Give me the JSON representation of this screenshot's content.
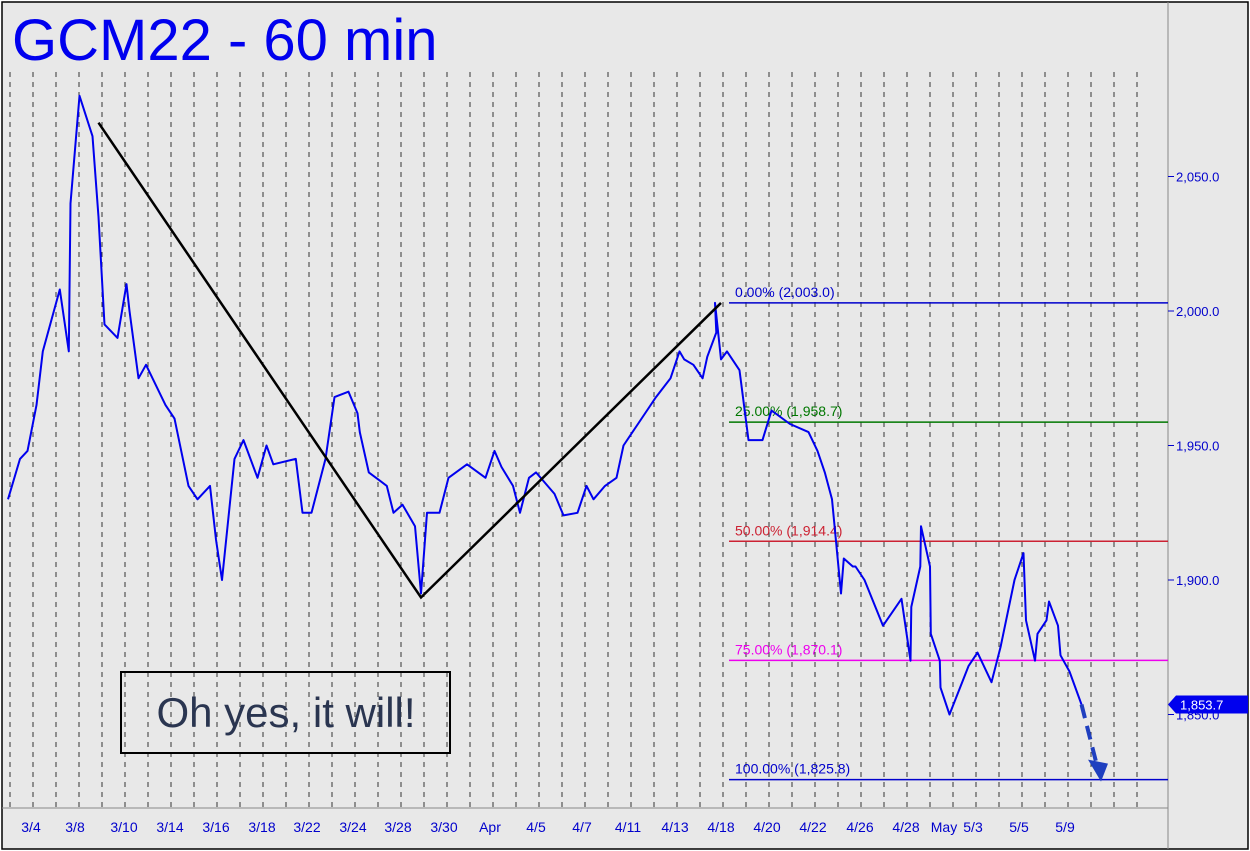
{
  "chart_data": {
    "type": "line",
    "title": "GCM22 - 60 min",
    "annotation_box": "Oh yes, it will!",
    "ylim": [
      1810,
      2090
    ],
    "y_ticks": [
      {
        "value": 2050,
        "label": "2,050.0"
      },
      {
        "value": 2000,
        "label": "2,000.0"
      },
      {
        "value": 1950,
        "label": "1,950.0"
      },
      {
        "value": 1900,
        "label": "1,900.0"
      },
      {
        "value": 1850,
        "label": "1,850.0"
      }
    ],
    "x_tick_labels": [
      "3/4",
      "3/8",
      "3/10",
      "3/14",
      "3/16",
      "3/18",
      "3/22",
      "3/24",
      "3/28",
      "3/30",
      "Apr",
      "4/5",
      "4/7",
      "4/11",
      "4/13",
      "4/18",
      "4/20",
      "4/22",
      "4/26",
      "4/28",
      "May",
      "5/3",
      "5/5",
      "5/9"
    ],
    "last_price": {
      "value": 1853.7,
      "label": "1,853.7"
    },
    "fib_levels": [
      {
        "pct": "0.00%",
        "label": "0.00% (2,003.0)",
        "value": 2003.0,
        "color": "#0000cc"
      },
      {
        "pct": "25.00%",
        "label": "25.00% (1,958.7)",
        "value": 1958.7,
        "color": "#007700"
      },
      {
        "pct": "50.00%",
        "label": "50.00% (1,914.4)",
        "value": 1914.4,
        "color": "#cc2233"
      },
      {
        "pct": "75.00%",
        "label": "75.00% (1,870.1)",
        "value": 1870.1,
        "color": "#ee00ee"
      },
      {
        "pct": "100.00%",
        "label": "100.00% (1,825.8)",
        "value": 1825.8,
        "color": "#0000cc"
      }
    ],
    "abc_pattern": [
      {
        "x": "3/9",
        "y": 2070
      },
      {
        "x": "3/29",
        "y": 1893.5
      },
      {
        "x": "4/18",
        "y": 2003.0
      }
    ],
    "series": [
      {
        "points": [
          [
            "3/2",
            1930
          ],
          [
            "3/3",
            1945
          ],
          [
            "3/4",
            1948
          ],
          [
            "3/4",
            1965
          ],
          [
            "3/5",
            1985
          ],
          [
            "3/7",
            2008
          ],
          [
            "3/7",
            1985
          ],
          [
            "3/8",
            2040
          ],
          [
            "3/8",
            2080
          ],
          [
            "3/9",
            2065
          ],
          [
            "3/9",
            2035
          ],
          [
            "3/9",
            1995
          ],
          [
            "3/10",
            1990
          ],
          [
            "3/10",
            2010
          ],
          [
            "3/11",
            2000
          ],
          [
            "3/11",
            1975
          ],
          [
            "3/12",
            1980
          ],
          [
            "3/14",
            1965
          ],
          [
            "3/14",
            1960
          ],
          [
            "3/15",
            1935
          ],
          [
            "3/15",
            1930
          ],
          [
            "3/16",
            1935
          ],
          [
            "3/16",
            1915
          ],
          [
            "3/16",
            1900
          ],
          [
            "3/17",
            1945
          ],
          [
            "3/17",
            1952
          ],
          [
            "3/18",
            1938
          ],
          [
            "3/18",
            1950
          ],
          [
            "3/19",
            1943
          ],
          [
            "3/21",
            1945
          ],
          [
            "3/22",
            1925
          ],
          [
            "3/22",
            1925
          ],
          [
            "3/23",
            1945
          ],
          [
            "3/23",
            1968
          ],
          [
            "3/24",
            1970
          ],
          [
            "3/24",
            1962
          ],
          [
            "3/25",
            1955
          ],
          [
            "3/25",
            1940
          ],
          [
            "3/27",
            1935
          ],
          [
            "3/28",
            1925
          ],
          [
            "3/28",
            1928
          ],
          [
            "3/29",
            1920
          ],
          [
            "3/29",
            1895
          ],
          [
            "3/29",
            1925
          ],
          [
            "3/30",
            1925
          ],
          [
            "3/30",
            1938
          ],
          [
            "3/31",
            1943
          ],
          [
            "4/1",
            1938
          ],
          [
            "4/1",
            1948
          ],
          [
            "4/2",
            1942
          ],
          [
            "4/3",
            1935
          ],
          [
            "4/4",
            1925
          ],
          [
            "4/4",
            1938
          ],
          [
            "4/5",
            1940
          ],
          [
            "4/6",
            1932
          ],
          [
            "4/6",
            1924
          ],
          [
            "4/7",
            1925
          ],
          [
            "4/7",
            1935
          ],
          [
            "4/8",
            1930
          ],
          [
            "4/9",
            1935
          ],
          [
            "4/10",
            1938
          ],
          [
            "4/11",
            1950
          ],
          [
            "4/11",
            1955
          ],
          [
            "4/12",
            1963
          ],
          [
            "4/12",
            1968
          ],
          [
            "4/13",
            1975
          ],
          [
            "4/13",
            1985
          ],
          [
            "4/14",
            1982
          ],
          [
            "4/15",
            1980
          ],
          [
            "4/16",
            1975
          ],
          [
            "4/17",
            1983
          ],
          [
            "4/17",
            1992
          ],
          [
            "4/18",
            2003
          ],
          [
            "4/18",
            1982
          ],
          [
            "4/18",
            1985
          ],
          [
            "4/19",
            1978
          ],
          [
            "4/19",
            1952
          ],
          [
            "4/20",
            1952
          ],
          [
            "4/20",
            1963
          ],
          [
            "4/21",
            1958
          ],
          [
            "4/22",
            1955
          ],
          [
            "4/22",
            1948
          ],
          [
            "4/23",
            1940
          ],
          [
            "4/24",
            1930
          ],
          [
            "4/24",
            1895
          ],
          [
            "4/25",
            1908
          ],
          [
            "4/25",
            1905
          ],
          [
            "4/26",
            1905
          ],
          [
            "4/26",
            1900
          ],
          [
            "4/27",
            1883
          ],
          [
            "4/28",
            1893
          ],
          [
            "4/28",
            1870
          ],
          [
            "4/29",
            1890
          ],
          [
            "4/29",
            1905
          ],
          [
            "4/30",
            1920
          ],
          [
            "4/30",
            1905
          ],
          [
            "5/1",
            1880
          ],
          [
            "5/1",
            1870
          ],
          [
            "5/2",
            1860
          ],
          [
            "5/2",
            1850
          ],
          [
            "5/3",
            1868
          ],
          [
            "5/3",
            1873
          ],
          [
            "5/4",
            1862
          ],
          [
            "5/4",
            1875
          ],
          [
            "5/5",
            1900
          ],
          [
            "5/5",
            1910
          ],
          [
            "5/6",
            1885
          ],
          [
            "5/6",
            1870
          ],
          [
            "5/7",
            1880
          ],
          [
            "5/7",
            1885
          ],
          [
            "5/8",
            1892
          ],
          [
            "5/8",
            1883
          ],
          [
            "5/9",
            1872
          ],
          [
            "5/9",
            1866
          ],
          [
            "5/10",
            1853.7
          ]
        ]
      }
    ],
    "projection": {
      "from": {
        "x": "5/10",
        "y": 1853.7
      },
      "to": {
        "x": "5/11",
        "y": 1825.8
      }
    },
    "colors": {
      "price_line": "#0000ee",
      "title": "#0000ee",
      "axis_label": "#0000cc",
      "pattern_line": "#000000",
      "background": "#e8e8e8",
      "last_price_badge": "#0000ee"
    }
  }
}
